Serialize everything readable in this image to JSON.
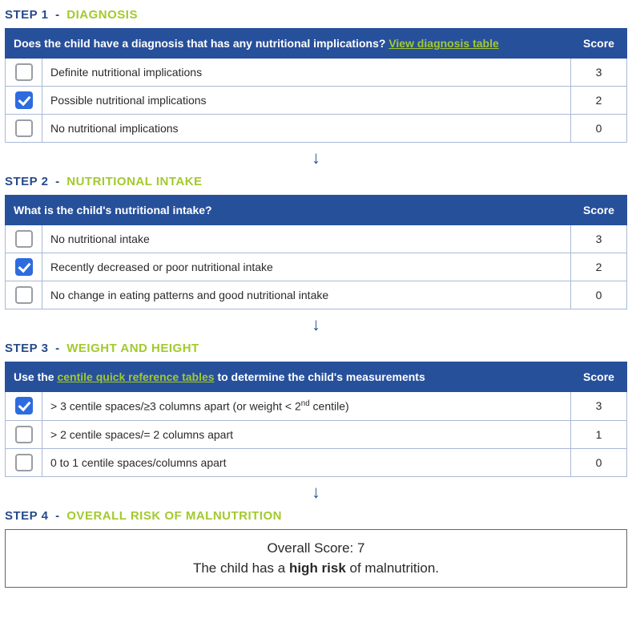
{
  "steps": [
    {
      "num": "STEP 1",
      "title": "DIAGNOSIS",
      "question_pre": "Does the child have a diagnosis that has any nutritional implications? ",
      "question_link": "View diagnosis table",
      "question_post": "",
      "score_head": "Score",
      "rows": [
        {
          "checked": false,
          "label": "Definite nutritional implications",
          "score": "3"
        },
        {
          "checked": true,
          "label": "Possible nutritional implications",
          "score": "2"
        },
        {
          "checked": false,
          "label": "No nutritional implications",
          "score": "0"
        }
      ]
    },
    {
      "num": "STEP 2",
      "title": "NUTRITIONAL INTAKE",
      "question_pre": "What is the child's nutritional intake?",
      "question_link": "",
      "question_post": "",
      "score_head": "Score",
      "rows": [
        {
          "checked": false,
          "label": "No nutritional intake",
          "score": "3"
        },
        {
          "checked": true,
          "label": "Recently decreased or poor nutritional intake",
          "score": "2"
        },
        {
          "checked": false,
          "label": "No change in eating patterns and good nutritional intake",
          "score": "0"
        }
      ]
    },
    {
      "num": "STEP 3",
      "title": "WEIGHT AND HEIGHT",
      "question_pre": "Use the ",
      "question_link": "centile quick reference tables",
      "question_post": " to determine the child's measurements",
      "score_head": "Score",
      "rows": [
        {
          "checked": true,
          "label_html": "> 3 centile spaces/≥3 columns apart (or weight < 2<sup>nd</sup> centile)",
          "score": "3"
        },
        {
          "checked": false,
          "label": "> 2 centile spaces/= 2 columns apart",
          "score": "1"
        },
        {
          "checked": false,
          "label": "0 to 1 centile spaces/columns apart",
          "score": "0"
        }
      ]
    }
  ],
  "step4": {
    "num": "STEP 4",
    "title": "OVERALL RISK OF MALNUTRITION",
    "overall_score_label": "Overall Score: ",
    "overall_score_value": "7",
    "risk_pre": "The child has a ",
    "risk_level": "high risk",
    "risk_post": " of malnutrition."
  },
  "arrow": "↓",
  "colors": {
    "header_bg": "#27509b",
    "accent_green": "#a3c92e",
    "checkbox_checked": "#2d6cdf",
    "border": "#a9b9d6"
  }
}
